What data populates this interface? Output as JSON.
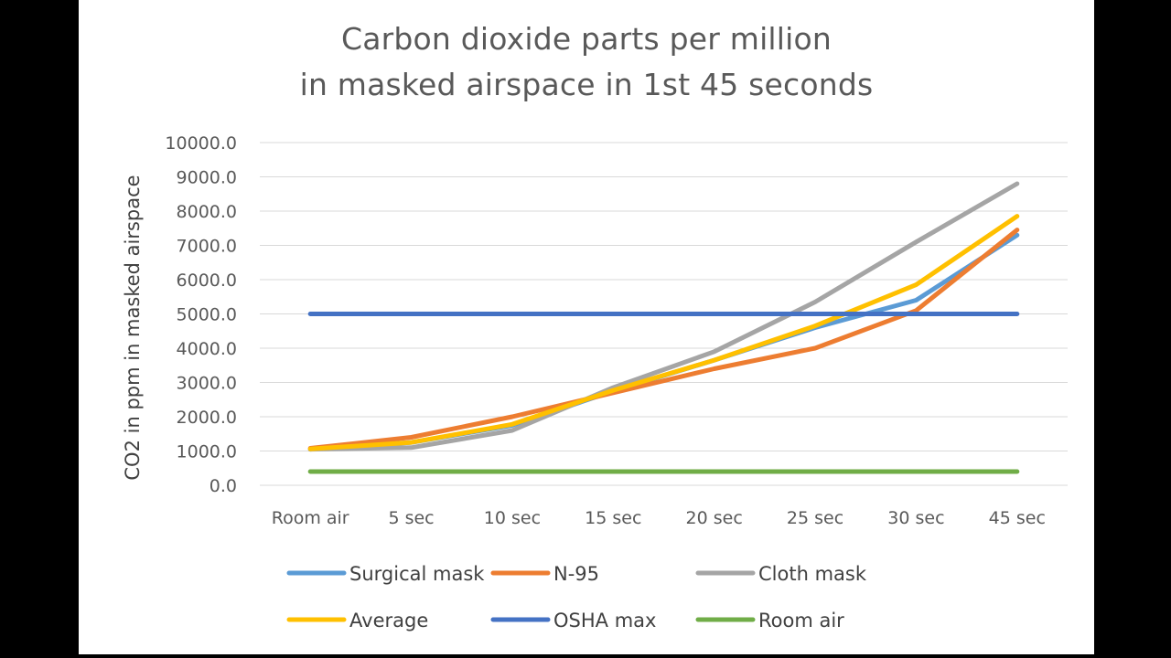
{
  "chart_data": {
    "type": "line",
    "title": [
      "Carbon dioxide parts per million",
      "in masked airspace in 1st 45 seconds"
    ],
    "xlabel": "",
    "ylabel": "CO2 in ppm in masked airspace",
    "categories": [
      "Room air",
      "5 sec",
      "10 sec",
      "15 sec",
      "20 sec",
      "25 sec",
      "30 sec",
      "45 sec"
    ],
    "ylim": [
      0,
      10000
    ],
    "yticks": [
      {
        "value": 0,
        "label": "0.0"
      },
      {
        "value": 1000,
        "label": "1000.0"
      },
      {
        "value": 2000,
        "label": "2000.0"
      },
      {
        "value": 3000,
        "label": "3000.0"
      },
      {
        "value": 4000,
        "label": "4000.0"
      },
      {
        "value": 5000,
        "label": "5000.0"
      },
      {
        "value": 6000,
        "label": "6000.0"
      },
      {
        "value": 7000,
        "label": "7000.0"
      },
      {
        "value": 8000,
        "label": "8000.0"
      },
      {
        "value": 9000,
        "label": "9000.0"
      },
      {
        "value": 10000,
        "label": "10000.0"
      }
    ],
    "grid": true,
    "legend_position": "bottom",
    "series": [
      {
        "name": "Surgical mask",
        "color": "#5B9BD5",
        "values": [
          1050,
          1250,
          1750,
          2750,
          3650,
          4600,
          5400,
          7300
        ]
      },
      {
        "name": "N-95",
        "color": "#ED7D31",
        "values": [
          1080,
          1400,
          2000,
          2700,
          3400,
          4000,
          5100,
          7450
        ]
      },
      {
        "name": "Cloth mask",
        "color": "#A5A5A5",
        "values": [
          1050,
          1100,
          1600,
          2850,
          3900,
          5350,
          7100,
          8800
        ]
      },
      {
        "name": "Average",
        "color": "#FFC000",
        "values": [
          1060,
          1250,
          1780,
          2770,
          3650,
          4650,
          5850,
          7850
        ]
      },
      {
        "name": "OSHA max",
        "color": "#4472C4",
        "values": [
          5000,
          5000,
          5000,
          5000,
          5000,
          5000,
          5000,
          5000
        ]
      },
      {
        "name": "Room air",
        "color": "#70AD47",
        "values": [
          400,
          400,
          400,
          400,
          400,
          400,
          400,
          400
        ]
      }
    ]
  }
}
